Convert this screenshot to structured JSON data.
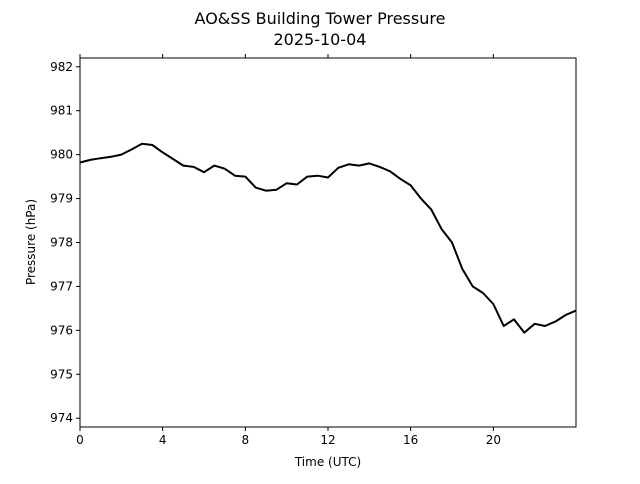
{
  "chart_data": {
    "type": "line",
    "title": "AO&SS Building Tower Pressure",
    "subtitle": "2025-10-04",
    "xlabel": "Time (UTC)",
    "ylabel": "Pressure (hPa)",
    "xlim": [
      0,
      24
    ],
    "ylim": [
      973.8,
      982.2
    ],
    "xticks": [
      0,
      4,
      8,
      12,
      16,
      20
    ],
    "xtick_labels": [
      "0",
      "4",
      "8",
      "12",
      "16",
      "20"
    ],
    "yticks": [
      974,
      975,
      976,
      977,
      978,
      979,
      980,
      981,
      982
    ],
    "ytick_labels": [
      "974",
      "975",
      "976",
      "977",
      "978",
      "979",
      "980",
      "981",
      "982"
    ],
    "grid": false,
    "series": [
      {
        "name": "Pressure",
        "color": "#000000",
        "x": [
          0,
          0.5,
          1,
          1.5,
          2,
          2.5,
          3,
          3.5,
          4,
          4.5,
          5,
          5.5,
          6,
          6.5,
          7,
          7.5,
          8,
          8.5,
          9,
          9.5,
          10,
          10.5,
          11,
          11.5,
          12,
          12.5,
          13,
          13.5,
          14,
          14.5,
          15,
          15.5,
          16,
          16.5,
          17,
          17.5,
          18,
          18.5,
          19,
          19.5,
          20,
          20.5,
          21,
          21.5,
          22,
          22.5,
          23,
          23.5,
          24
        ],
        "y": [
          979.82,
          979.88,
          979.92,
          979.95,
          980.0,
          980.12,
          980.25,
          980.22,
          980.05,
          979.9,
          979.75,
          979.72,
          979.6,
          979.75,
          979.68,
          979.52,
          979.5,
          979.25,
          979.18,
          979.2,
          979.35,
          979.32,
          979.5,
          979.52,
          979.48,
          979.7,
          979.78,
          979.75,
          979.8,
          979.72,
          979.62,
          979.45,
          979.3,
          979.0,
          978.75,
          978.3,
          978.0,
          977.4,
          977.0,
          976.85,
          976.6,
          976.1,
          976.25,
          975.95,
          976.15,
          976.1,
          976.2,
          976.35,
          976.45
        ]
      }
    ]
  }
}
